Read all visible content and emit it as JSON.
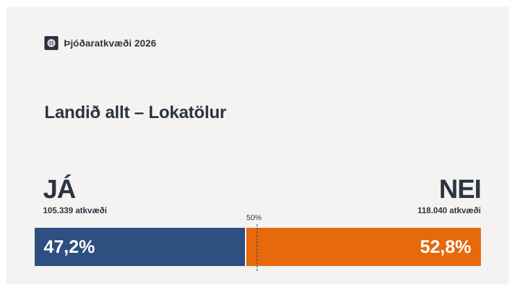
{
  "brand": {
    "title": "Þjóðaratkvæði 2026",
    "icon": "emblem-icon"
  },
  "headline": "Landið allt – Lokatölur",
  "results": {
    "yes": {
      "label": "JÁ",
      "votes": "105.339 atkvæði",
      "percent_text": "47,2%",
      "share": 0.472,
      "color": "#2e4f80"
    },
    "no": {
      "label": "NEI",
      "votes": "118.040 atkvæði",
      "percent_text": "52,8%",
      "share": 0.528,
      "color": "#e6690e"
    },
    "midline_label": "50%"
  }
}
